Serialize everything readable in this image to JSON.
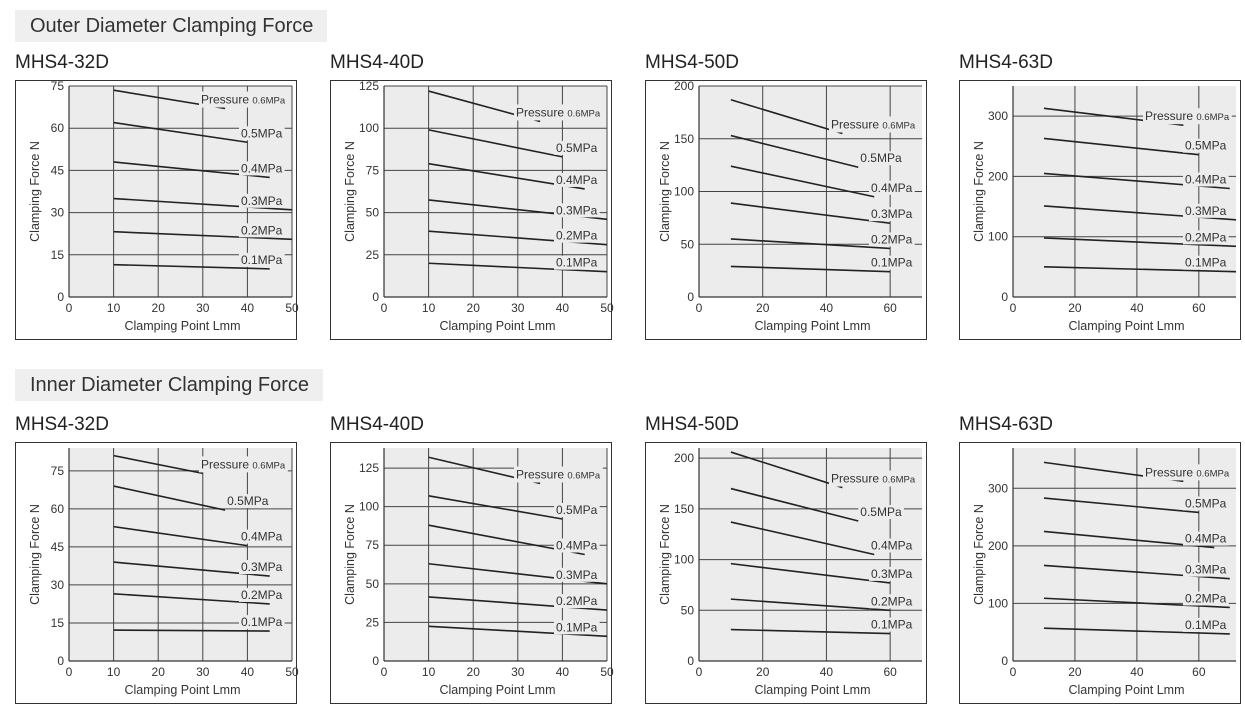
{
  "sections": [
    {
      "title": "Outer Diameter Clamping Force"
    },
    {
      "title": "Inner Diameter Clamping Force"
    }
  ],
  "chart_data": [
    {
      "type": "line",
      "title": "MHS4-32D",
      "xlabel": "Clamping Point Lmm",
      "ylabel": "Clamping Force N",
      "xlim": [
        0,
        50
      ],
      "ylim": [
        0,
        75
      ],
      "xticks": [
        0,
        10,
        20,
        30,
        40,
        50
      ],
      "yticks": [
        0,
        15,
        30,
        45,
        60,
        75
      ],
      "grid": true,
      "legend_prefix": "Pressure",
      "series": [
        {
          "name": "0.6MPa",
          "x": [
            10,
            35
          ],
          "y": [
            73.5,
            67
          ]
        },
        {
          "name": "0.5MPa",
          "x": [
            10,
            40
          ],
          "y": [
            62,
            55
          ]
        },
        {
          "name": "0.4MPa",
          "x": [
            10,
            45
          ],
          "y": [
            48,
            42.5
          ]
        },
        {
          "name": "0.3MPa",
          "x": [
            10,
            50
          ],
          "y": [
            35,
            31
          ]
        },
        {
          "name": "0.2MPa",
          "x": [
            10,
            50
          ],
          "y": [
            23.2,
            20.5
          ]
        },
        {
          "name": "0.1MPa",
          "x": [
            10,
            45
          ],
          "y": [
            11.5,
            10
          ]
        }
      ]
    },
    {
      "type": "line",
      "title": "MHS4-40D",
      "xlabel": "Clamping Point Lmm",
      "ylabel": "Clamping Force N",
      "xlim": [
        0,
        50
      ],
      "ylim": [
        0,
        125
      ],
      "xticks": [
        0,
        10,
        20,
        30,
        40,
        50
      ],
      "yticks": [
        0,
        25,
        50,
        75,
        100,
        125
      ],
      "grid": true,
      "legend_prefix": "Pressure",
      "series": [
        {
          "name": "0.6MPa",
          "x": [
            10,
            35
          ],
          "y": [
            122,
            104
          ]
        },
        {
          "name": "0.5MPa",
          "x": [
            10,
            40
          ],
          "y": [
            99,
            83
          ]
        },
        {
          "name": "0.4MPa",
          "x": [
            10,
            45
          ],
          "y": [
            79,
            64
          ]
        },
        {
          "name": "0.3MPa",
          "x": [
            10,
            50
          ],
          "y": [
            57.5,
            46
          ]
        },
        {
          "name": "0.2MPa",
          "x": [
            10,
            50
          ],
          "y": [
            39,
            31
          ]
        },
        {
          "name": "0.1MPa",
          "x": [
            10,
            50
          ],
          "y": [
            20,
            15
          ]
        }
      ]
    },
    {
      "type": "line",
      "title": "MHS4-50D",
      "xlabel": "Clamping Point Lmm",
      "ylabel": "Clamping Force N",
      "xlim": [
        0,
        70
      ],
      "ylim": [
        0,
        200
      ],
      "xticks": [
        0,
        20,
        40,
        60
      ],
      "yticks": [
        0,
        50,
        100,
        150,
        200
      ],
      "grid": true,
      "legend_prefix": "Pressure",
      "series": [
        {
          "name": "0.6MPa",
          "x": [
            10,
            45
          ],
          "y": [
            187,
            155
          ]
        },
        {
          "name": "0.5MPa",
          "x": [
            10,
            50
          ],
          "y": [
            153,
            123
          ]
        },
        {
          "name": "0.4MPa",
          "x": [
            10,
            55
          ],
          "y": [
            124,
            95
          ]
        },
        {
          "name": "0.3MPa",
          "x": [
            10,
            60
          ],
          "y": [
            89,
            70
          ]
        },
        {
          "name": "0.2MPa",
          "x": [
            10,
            60
          ],
          "y": [
            55,
            46
          ]
        },
        {
          "name": "0.1MPa",
          "x": [
            10,
            60
          ],
          "y": [
            29,
            24
          ]
        }
      ]
    },
    {
      "type": "line",
      "title": "MHS4-63D",
      "xlabel": "Clamping Point Lmm",
      "ylabel": "Clamping Force N",
      "xlim": [
        0,
        72
      ],
      "ylim": [
        0,
        350
      ],
      "xticks": [
        0,
        20,
        40,
        60
      ],
      "yticks": [
        0,
        100,
        200,
        300
      ],
      "grid": true,
      "legend_prefix": "Pressure",
      "series": [
        {
          "name": "0.6MPa",
          "x": [
            10,
            55
          ],
          "y": [
            313,
            285
          ]
        },
        {
          "name": "0.5MPa",
          "x": [
            10,
            60
          ],
          "y": [
            263,
            236
          ]
        },
        {
          "name": "0.4MPa",
          "x": [
            10,
            70
          ],
          "y": [
            205,
            180
          ]
        },
        {
          "name": "0.3MPa",
          "x": [
            10,
            72
          ],
          "y": [
            151,
            128
          ]
        },
        {
          "name": "0.2MPa",
          "x": [
            10,
            72
          ],
          "y": [
            98,
            84
          ]
        },
        {
          "name": "0.1MPa",
          "x": [
            10,
            72
          ],
          "y": [
            50,
            42
          ]
        }
      ]
    },
    {
      "type": "line",
      "title": "MHS4-32D",
      "xlabel": "Clamping Point Lmm",
      "ylabel": "Clamping Force N",
      "xlim": [
        0,
        50
      ],
      "ylim": [
        0,
        84
      ],
      "xticks": [
        0,
        10,
        20,
        30,
        40,
        50
      ],
      "yticks": [
        0,
        15,
        30,
        45,
        60,
        75
      ],
      "grid": true,
      "legend_prefix": "Pressure",
      "series": [
        {
          "name": "0.6MPa",
          "x": [
            10,
            30
          ],
          "y": [
            81,
            74
          ]
        },
        {
          "name": "0.5MPa",
          "x": [
            10,
            35
          ],
          "y": [
            69,
            59.5
          ]
        },
        {
          "name": "0.4MPa",
          "x": [
            10,
            40
          ],
          "y": [
            53,
            45.5
          ]
        },
        {
          "name": "0.3MPa",
          "x": [
            10,
            45
          ],
          "y": [
            39,
            33.5
          ]
        },
        {
          "name": "0.2MPa",
          "x": [
            10,
            45
          ],
          "y": [
            26.5,
            22.5
          ]
        },
        {
          "name": "0.1MPa",
          "x": [
            10,
            45
          ],
          "y": [
            12.2,
            11.8
          ]
        }
      ]
    },
    {
      "type": "line",
      "title": "MHS4-40D",
      "xlabel": "Clamping Point Lmm",
      "ylabel": "Clamping Force N",
      "xlim": [
        0,
        50
      ],
      "ylim": [
        0,
        138
      ],
      "xticks": [
        0,
        10,
        20,
        30,
        40,
        50
      ],
      "yticks": [
        0,
        25,
        50,
        75,
        100,
        125
      ],
      "grid": true,
      "legend_prefix": "Pressure",
      "series": [
        {
          "name": "0.6MPa",
          "x": [
            10,
            35
          ],
          "y": [
            132,
            115
          ]
        },
        {
          "name": "0.5MPa",
          "x": [
            10,
            40
          ],
          "y": [
            107,
            92
          ]
        },
        {
          "name": "0.4MPa",
          "x": [
            10,
            45
          ],
          "y": [
            88,
            69
          ]
        },
        {
          "name": "0.3MPa",
          "x": [
            10,
            50
          ],
          "y": [
            63,
            50
          ]
        },
        {
          "name": "0.2MPa",
          "x": [
            10,
            50
          ],
          "y": [
            41.5,
            33
          ]
        },
        {
          "name": "0.1MPa",
          "x": [
            10,
            50
          ],
          "y": [
            22.5,
            16
          ]
        }
      ]
    },
    {
      "type": "line",
      "title": "MHS4-50D",
      "xlabel": "Clamping Point Lmm",
      "ylabel": "Clamping Force N",
      "xlim": [
        0,
        70
      ],
      "ylim": [
        0,
        210
      ],
      "xticks": [
        0,
        20,
        40,
        60
      ],
      "yticks": [
        0,
        50,
        100,
        150,
        200
      ],
      "grid": true,
      "legend_prefix": "Pressure",
      "series": [
        {
          "name": "0.6MPa",
          "x": [
            10,
            45
          ],
          "y": [
            206,
            171
          ]
        },
        {
          "name": "0.5MPa",
          "x": [
            10,
            50
          ],
          "y": [
            170,
            138
          ]
        },
        {
          "name": "0.4MPa",
          "x": [
            10,
            55
          ],
          "y": [
            137,
            105
          ]
        },
        {
          "name": "0.3MPa",
          "x": [
            10,
            60
          ],
          "y": [
            96,
            77
          ]
        },
        {
          "name": "0.2MPa",
          "x": [
            10,
            60
          ],
          "y": [
            61,
            50
          ]
        },
        {
          "name": "0.1MPa",
          "x": [
            10,
            60
          ],
          "y": [
            31,
            27
          ]
        }
      ]
    },
    {
      "type": "line",
      "title": "MHS4-63D",
      "xlabel": "Clamping Point Lmm",
      "ylabel": "Clamping Force N",
      "xlim": [
        0,
        72
      ],
      "ylim": [
        0,
        370
      ],
      "xticks": [
        0,
        20,
        40,
        60
      ],
      "yticks": [
        0,
        100,
        200,
        300
      ],
      "grid": true,
      "legend_prefix": "Pressure",
      "series": [
        {
          "name": "0.6MPa",
          "x": [
            10,
            55
          ],
          "y": [
            345,
            312
          ]
        },
        {
          "name": "0.5MPa",
          "x": [
            10,
            60
          ],
          "y": [
            283,
            258
          ]
        },
        {
          "name": "0.4MPa",
          "x": [
            10,
            65
          ],
          "y": [
            225,
            197
          ]
        },
        {
          "name": "0.3MPa",
          "x": [
            10,
            70
          ],
          "y": [
            166,
            143
          ]
        },
        {
          "name": "0.2MPa",
          "x": [
            10,
            70
          ],
          "y": [
            109,
            93
          ]
        },
        {
          "name": "0.1MPa",
          "x": [
            10,
            70
          ],
          "y": [
            57,
            47
          ]
        }
      ]
    }
  ]
}
